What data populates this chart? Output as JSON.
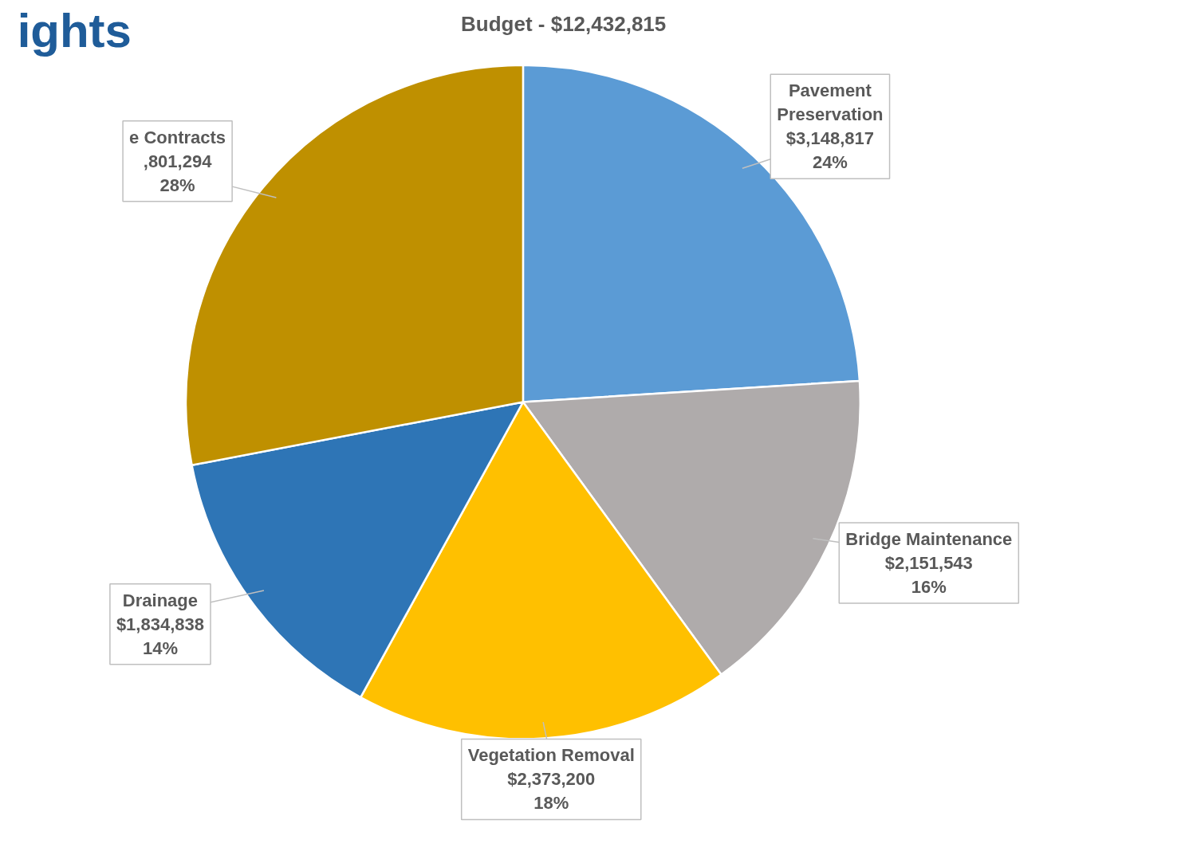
{
  "chart_data": {
    "type": "pie",
    "title": "Budget - $12,432,815",
    "categories": [
      "Pavement Preservation",
      "Bridge Maintenance",
      "Vegetation Removal",
      "Drainage",
      "e Contracts"
    ],
    "values": [
      24,
      16,
      18,
      14,
      28
    ],
    "colors": [
      "#5b9bd5",
      "#afabab",
      "#ffc000",
      "#2e75b6",
      "#bf9000"
    ],
    "value_labels": [
      "$3,148,817\n24%",
      "$2,151,543\n16%",
      "$2,373,200\n18%",
      "$1,834,838\n14%",
      ",801,294\n28%"
    ],
    "annotations": [
      "ights"
    ]
  }
}
